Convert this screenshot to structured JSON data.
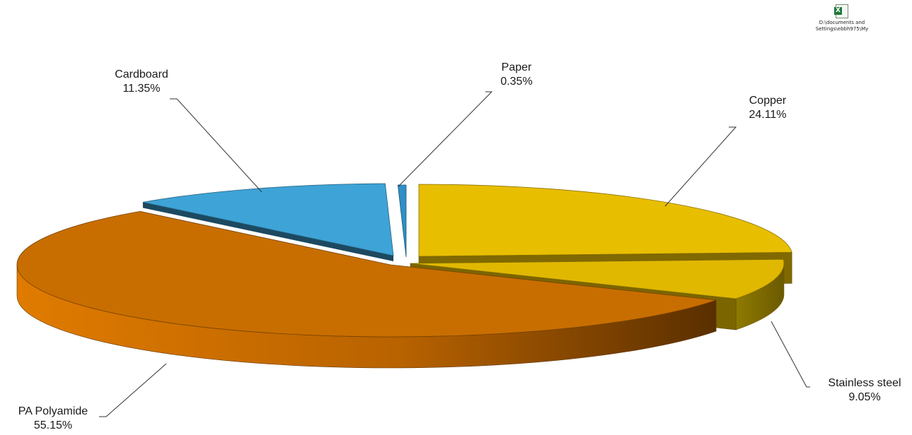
{
  "file_icon": {
    "icon": "excel-file-icon",
    "label_line1": "D:\\documents and",
    "label_line2": "Settings\\ebbh975\\My"
  },
  "chart_data": {
    "type": "pie",
    "style": "3d-exploded",
    "title": "",
    "slices": [
      {
        "label": "Copper",
        "value": 24.11,
        "value_text": "24.11%",
        "color": "#E8BE00"
      },
      {
        "label": "Stainless steel",
        "value": 9.05,
        "value_text": "9.05%",
        "color": "#E0B800"
      },
      {
        "label": "PA Polyamide",
        "value": 55.15,
        "value_text": "55.15%",
        "color": "#C86E00"
      },
      {
        "label": "Cardboard",
        "value": 11.35,
        "value_text": "11.35%",
        "color": "#3EA3D6"
      },
      {
        "label": "Paper",
        "value": 0.35,
        "value_text": "0.35%",
        "color": "#2F8FC6"
      }
    ],
    "legend": "none",
    "data_labels": "outside with leader lines"
  }
}
